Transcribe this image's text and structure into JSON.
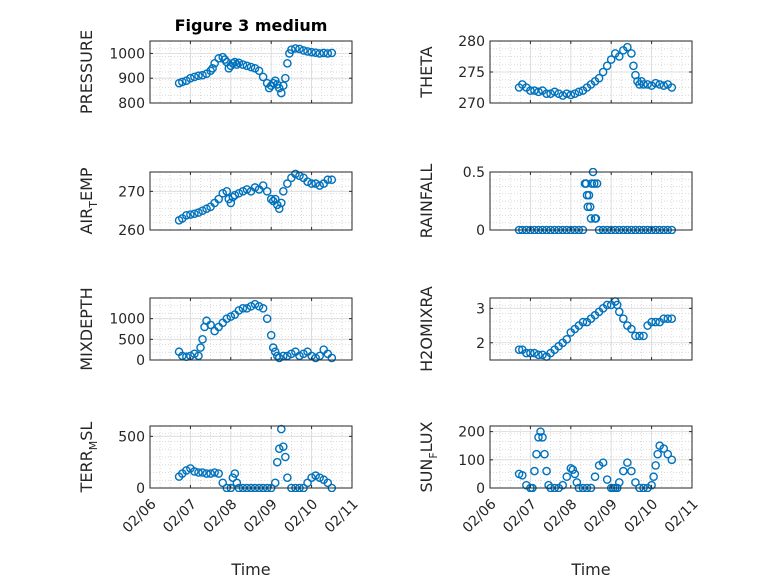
{
  "figure": {
    "title": "Figure 3 medium",
    "x_tick_labels": [
      "02/06",
      "02/07",
      "02/08",
      "02/09",
      "02/10",
      "02/11"
    ],
    "x_label": "Time",
    "marker_color": "#0072BD"
  },
  "chart_data": [
    {
      "type": "scatter",
      "ylabel": "PRESSURE",
      "ylim": [
        800,
        1050
      ],
      "yticks": [
        800,
        900,
        1000
      ],
      "x_ticks": [
        "02/06",
        "02/07",
        "02/08",
        "02/09",
        "02/10",
        "02/11"
      ],
      "title": "Figure 3 medium",
      "xlabel": "",
      "grid": true,
      "series": [
        {
          "x": [
            6.72,
            6.8,
            6.9,
            7.0,
            7.1,
            7.2,
            7.3,
            7.4,
            7.5,
            7.55,
            7.6,
            7.7,
            7.8,
            7.85,
            7.9,
            7.95,
            8.0,
            8.05,
            8.1,
            8.15,
            8.2,
            8.3,
            8.4,
            8.5,
            8.6,
            8.7,
            8.8,
            8.9,
            8.95,
            9.0,
            9.05,
            9.1,
            9.15,
            9.2,
            9.25,
            9.3,
            9.35,
            9.4,
            9.45,
            9.5,
            9.6,
            9.7,
            9.8,
            9.9,
            10.0,
            10.1,
            10.2,
            10.3,
            10.4,
            10.5
          ],
          "y": [
            880,
            885,
            890,
            900,
            905,
            910,
            912,
            918,
            930,
            940,
            960,
            980,
            985,
            975,
            965,
            940,
            950,
            960,
            965,
            955,
            962,
            955,
            950,
            945,
            940,
            930,
            905,
            880,
            860,
            870,
            880,
            890,
            875,
            860,
            840,
            870,
            900,
            960,
            1000,
            1015,
            1020,
            1018,
            1012,
            1008,
            1005,
            1003,
            1000,
            1002,
            1000,
            1002
          ]
        }
      ]
    },
    {
      "type": "scatter",
      "ylabel": "THETA",
      "ylim": [
        270,
        280
      ],
      "yticks": [
        270,
        275,
        280
      ],
      "x_ticks": [
        "02/06",
        "02/07",
        "02/08",
        "02/09",
        "02/10",
        "02/11"
      ],
      "xlabel": "",
      "grid": true,
      "series": [
        {
          "x": [
            6.72,
            6.8,
            6.9,
            7.0,
            7.1,
            7.2,
            7.3,
            7.4,
            7.5,
            7.6,
            7.7,
            7.8,
            7.9,
            8.0,
            8.1,
            8.2,
            8.3,
            8.4,
            8.5,
            8.6,
            8.7,
            8.8,
            8.9,
            9.0,
            9.1,
            9.2,
            9.3,
            9.4,
            9.5,
            9.55,
            9.6,
            9.65,
            9.7,
            9.75,
            9.8,
            9.9,
            10.0,
            10.1,
            10.2,
            10.3,
            10.4,
            10.5
          ],
          "y": [
            272.5,
            273.0,
            272.5,
            272.0,
            272.0,
            271.8,
            272.0,
            271.5,
            271.5,
            271.8,
            271.5,
            271.2,
            271.5,
            271.3,
            271.5,
            271.8,
            272.0,
            272.5,
            273.0,
            273.5,
            274.0,
            275.0,
            276.0,
            277.0,
            278.0,
            277.5,
            278.5,
            279.0,
            278.0,
            276.0,
            274.5,
            273.5,
            273.0,
            273.5,
            273.0,
            273.0,
            272.8,
            273.2,
            273.0,
            272.8,
            273.0,
            272.5
          ]
        }
      ]
    },
    {
      "type": "scatter",
      "ylabel": "AIR_TEMP",
      "ylim": [
        260,
        275
      ],
      "yticks": [
        260,
        270
      ],
      "x_ticks": [
        "02/06",
        "02/07",
        "02/08",
        "02/09",
        "02/10",
        "02/11"
      ],
      "xlabel": "",
      "grid": true,
      "series": [
        {
          "x": [
            6.72,
            6.8,
            6.9,
            7.0,
            7.1,
            7.2,
            7.3,
            7.4,
            7.5,
            7.6,
            7.7,
            7.8,
            7.9,
            7.95,
            8.0,
            8.05,
            8.1,
            8.2,
            8.3,
            8.4,
            8.5,
            8.6,
            8.7,
            8.8,
            8.9,
            9.0,
            9.05,
            9.1,
            9.15,
            9.2,
            9.25,
            9.3,
            9.4,
            9.5,
            9.6,
            9.7,
            9.8,
            9.9,
            10.0,
            10.1,
            10.2,
            10.3,
            10.4,
            10.5
          ],
          "y": [
            262.5,
            263.0,
            263.8,
            264.0,
            264.2,
            264.5,
            265.0,
            265.5,
            266.0,
            267.0,
            268.0,
            269.5,
            270.0,
            268.0,
            267.0,
            268.5,
            269.0,
            269.5,
            270.0,
            270.5,
            270.0,
            271.0,
            270.5,
            271.5,
            270.0,
            268.0,
            267.5,
            268.0,
            266.5,
            265.5,
            267.0,
            270.0,
            272.0,
            273.5,
            274.5,
            274.0,
            273.5,
            272.5,
            272.0,
            272.0,
            271.5,
            272.0,
            273.0,
            273.0
          ]
        }
      ]
    },
    {
      "type": "scatter",
      "ylabel": "RAINFALL",
      "ylim": [
        0,
        0.5
      ],
      "yticks": [
        0,
        0.5
      ],
      "x_ticks": [
        "02/06",
        "02/07",
        "02/08",
        "02/09",
        "02/10",
        "02/11"
      ],
      "xlabel": "",
      "grid": true,
      "series": [
        {
          "x": [
            6.72,
            6.8,
            6.9,
            7.0,
            7.1,
            7.2,
            7.3,
            7.4,
            7.5,
            7.6,
            7.7,
            7.8,
            7.9,
            8.0,
            8.1,
            8.2,
            8.3,
            8.35,
            8.38,
            8.4,
            8.42,
            8.45,
            8.48,
            8.5,
            8.52,
            8.55,
            8.58,
            8.6,
            8.62,
            8.65,
            8.7,
            8.8,
            8.9,
            9.0,
            9.1,
            9.2,
            9.3,
            9.4,
            9.5,
            9.6,
            9.7,
            9.8,
            9.9,
            10.0,
            10.1,
            10.2,
            10.3,
            10.4,
            10.5
          ],
          "y": [
            0,
            0,
            0,
            0,
            0,
            0,
            0,
            0,
            0,
            0,
            0,
            0,
            0,
            0,
            0,
            0,
            0,
            0.4,
            0.4,
            0.3,
            0.2,
            0.3,
            0.2,
            0.1,
            0.4,
            0.5,
            0.4,
            0.1,
            0.1,
            0.4,
            0,
            0,
            0,
            0,
            0,
            0,
            0,
            0,
            0,
            0,
            0,
            0,
            0,
            0,
            0,
            0,
            0,
            0,
            0
          ]
        }
      ]
    },
    {
      "type": "scatter",
      "ylabel": "MIXDEPTH",
      "ylim": [
        0,
        1500
      ],
      "yticks": [
        0,
        500,
        1000
      ],
      "x_ticks": [
        "02/06",
        "02/07",
        "02/08",
        "02/09",
        "02/10",
        "02/11"
      ],
      "xlabel": "",
      "grid": true,
      "series": [
        {
          "x": [
            6.72,
            6.8,
            6.9,
            7.0,
            7.1,
            7.2,
            7.25,
            7.3,
            7.35,
            7.4,
            7.5,
            7.6,
            7.7,
            7.8,
            7.9,
            8.0,
            8.1,
            8.2,
            8.3,
            8.4,
            8.5,
            8.6,
            8.7,
            8.8,
            8.9,
            9.0,
            9.05,
            9.1,
            9.15,
            9.2,
            9.3,
            9.4,
            9.5,
            9.6,
            9.7,
            9.8,
            9.9,
            10.0,
            10.1,
            10.2,
            10.3,
            10.4,
            10.5
          ],
          "y": [
            200,
            100,
            80,
            100,
            150,
            100,
            300,
            500,
            800,
            950,
            850,
            700,
            800,
            900,
            1000,
            1050,
            1100,
            1200,
            1250,
            1250,
            1300,
            1350,
            1300,
            1250,
            1000,
            600,
            300,
            200,
            100,
            50,
            100,
            100,
            150,
            200,
            100,
            150,
            200,
            100,
            50,
            100,
            250,
            150,
            50
          ]
        }
      ]
    },
    {
      "type": "scatter",
      "ylabel": "H2OMIXRA",
      "ylim": [
        1.5,
        3.3
      ],
      "yticks": [
        2,
        3
      ],
      "x_ticks": [
        "02/06",
        "02/07",
        "02/08",
        "02/09",
        "02/10",
        "02/11"
      ],
      "xlabel": "",
      "grid": true,
      "series": [
        {
          "x": [
            6.72,
            6.8,
            6.9,
            7.0,
            7.1,
            7.2,
            7.3,
            7.4,
            7.5,
            7.6,
            7.7,
            7.8,
            7.9,
            8.0,
            8.1,
            8.2,
            8.3,
            8.4,
            8.5,
            8.6,
            8.7,
            8.8,
            8.9,
            9.0,
            9.1,
            9.15,
            9.2,
            9.3,
            9.4,
            9.5,
            9.6,
            9.7,
            9.8,
            9.9,
            10.0,
            10.1,
            10.2,
            10.3,
            10.4,
            10.5
          ],
          "y": [
            1.8,
            1.8,
            1.7,
            1.7,
            1.7,
            1.65,
            1.65,
            1.6,
            1.7,
            1.8,
            1.9,
            2.0,
            2.1,
            2.3,
            2.4,
            2.5,
            2.6,
            2.6,
            2.7,
            2.8,
            2.9,
            3.0,
            3.1,
            3.1,
            3.2,
            3.1,
            2.9,
            2.7,
            2.5,
            2.4,
            2.2,
            2.2,
            2.2,
            2.5,
            2.6,
            2.6,
            2.6,
            2.7,
            2.7,
            2.7
          ]
        }
      ]
    },
    {
      "type": "scatter",
      "ylabel": "TERR_MSL",
      "ylim": [
        0,
        600
      ],
      "yticks": [
        0,
        500
      ],
      "x_ticks": [
        "02/06",
        "02/07",
        "02/08",
        "02/09",
        "02/10",
        "02/11"
      ],
      "xlabel": "02/06 02/07 02/08 02/09 02/10 02/11",
      "grid": true,
      "series": [
        {
          "x": [
            6.72,
            6.8,
            6.9,
            7.0,
            7.1,
            7.2,
            7.3,
            7.4,
            7.5,
            7.6,
            7.7,
            7.8,
            7.9,
            8.0,
            8.05,
            8.1,
            8.15,
            8.2,
            8.3,
            8.4,
            8.5,
            8.6,
            8.7,
            8.8,
            8.9,
            9.0,
            9.1,
            9.15,
            9.2,
            9.25,
            9.3,
            9.35,
            9.4,
            9.5,
            9.6,
            9.7,
            9.8,
            9.9,
            10.0,
            10.1,
            10.2,
            10.3,
            10.4,
            10.5
          ],
          "y": [
            110,
            140,
            170,
            190,
            160,
            150,
            150,
            140,
            140,
            150,
            140,
            50,
            0,
            0,
            100,
            140,
            50,
            0,
            0,
            0,
            0,
            0,
            0,
            0,
            0,
            0,
            50,
            250,
            380,
            570,
            400,
            300,
            100,
            0,
            0,
            0,
            0,
            50,
            100,
            120,
            100,
            80,
            50,
            0
          ]
        }
      ]
    },
    {
      "type": "scatter",
      "ylabel": "SUN_FLUX",
      "ylim": [
        0,
        220
      ],
      "yticks": [
        0,
        100,
        200
      ],
      "x_ticks": [
        "02/06",
        "02/07",
        "02/08",
        "02/09",
        "02/10",
        "02/11"
      ],
      "xlabel": "02/06 02/07 02/08 02/09 02/10 02/11",
      "grid": true,
      "series": [
        {
          "x": [
            6.72,
            6.8,
            6.9,
            7.0,
            7.05,
            7.1,
            7.15,
            7.2,
            7.25,
            7.3,
            7.35,
            7.4,
            7.45,
            7.5,
            7.6,
            7.7,
            7.8,
            7.9,
            8.0,
            8.05,
            8.1,
            8.15,
            8.2,
            8.3,
            8.4,
            8.5,
            8.6,
            8.7,
            8.8,
            8.9,
            9.0,
            9.05,
            9.1,
            9.15,
            9.2,
            9.3,
            9.4,
            9.5,
            9.6,
            9.7,
            9.8,
            9.9,
            10.0,
            10.05,
            10.1,
            10.15,
            10.2,
            10.3,
            10.4,
            10.5
          ],
          "y": [
            50,
            45,
            10,
            0,
            0,
            60,
            120,
            180,
            200,
            180,
            120,
            60,
            10,
            0,
            0,
            0,
            10,
            40,
            70,
            65,
            50,
            20,
            0,
            0,
            0,
            0,
            40,
            80,
            90,
            30,
            0,
            0,
            0,
            0,
            20,
            60,
            90,
            60,
            20,
            0,
            0,
            0,
            10,
            40,
            80,
            120,
            150,
            140,
            120,
            100
          ]
        }
      ]
    }
  ]
}
